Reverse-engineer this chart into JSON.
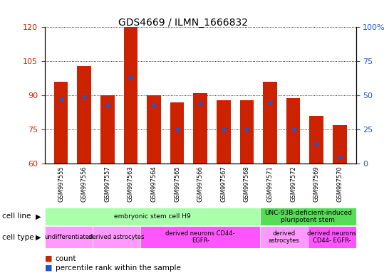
{
  "title": "GDS4669 / ILMN_1666832",
  "samples": [
    "GSM997555",
    "GSM997556",
    "GSM997557",
    "GSM997563",
    "GSM997564",
    "GSM997565",
    "GSM997566",
    "GSM997567",
    "GSM997568",
    "GSM997571",
    "GSM997572",
    "GSM997569",
    "GSM997570"
  ],
  "counts": [
    96,
    103,
    90,
    120,
    90,
    87,
    91,
    88,
    88,
    96,
    89,
    81,
    77
  ],
  "percentile_ranks": [
    47,
    49,
    43,
    63,
    43,
    25,
    44,
    25,
    25,
    45,
    25,
    15,
    5
  ],
  "ylim_left": [
    60,
    120
  ],
  "ylim_right": [
    0,
    100
  ],
  "yticks_left": [
    60,
    75,
    90,
    105,
    120
  ],
  "yticks_right": [
    0,
    25,
    50,
    75,
    100
  ],
  "bar_color": "#cc2200",
  "dot_color": "#2255cc",
  "cell_line_groups": [
    {
      "label": "embryonic stem cell H9",
      "start": 0,
      "end": 9,
      "color": "#aaffaa"
    },
    {
      "label": "UNC-93B-deficient-induced\npluripotent stem",
      "start": 9,
      "end": 13,
      "color": "#55dd55"
    }
  ],
  "cell_type_groups": [
    {
      "label": "undifferentiated",
      "start": 0,
      "end": 2,
      "color": "#ff99ff"
    },
    {
      "label": "derived astrocytes",
      "start": 2,
      "end": 4,
      "color": "#ff99ff"
    },
    {
      "label": "derived neurons CD44-\nEGFR-",
      "start": 4,
      "end": 9,
      "color": "#ff55ff"
    },
    {
      "label": "derived\nastrocytes",
      "start": 9,
      "end": 11,
      "color": "#ff99ff"
    },
    {
      "label": "derived neurons\nCD44- EGFR-",
      "start": 11,
      "end": 13,
      "color": "#ff55ff"
    }
  ],
  "legend_count_color": "#cc2200",
  "legend_pct_color": "#2255cc"
}
